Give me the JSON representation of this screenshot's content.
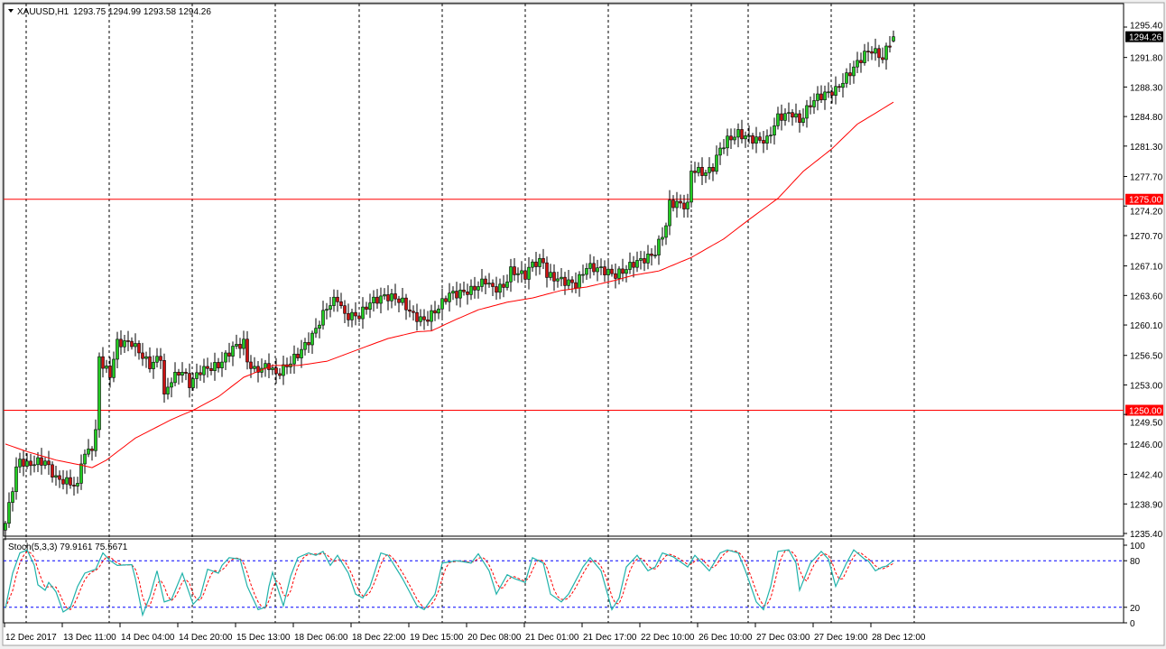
{
  "header": {
    "symbol_label": "XAUUSD,H1",
    "ohlc_text": "1293.75 1294.99 1293.58 1294.26",
    "menu_icon": "triangle-down-icon"
  },
  "colors": {
    "background": "#ffffff",
    "bull_candle": "#22cc22",
    "bear_candle": "#cc1111",
    "moving_average": "#ff0000",
    "level_line": "#ff0000",
    "stoch_main": "#20b2aa",
    "stoch_signal": "#ff0000",
    "stoch_levels": "#0000ff",
    "grid": "#000000"
  },
  "price_axis": {
    "ticks": [
      "1295.40",
      "1291.80",
      "1288.30",
      "1284.80",
      "1281.30",
      "1277.70",
      "1274.20",
      "1270.70",
      "1267.10",
      "1263.60",
      "1260.10",
      "1256.50",
      "1253.00",
      "1249.50",
      "1246.00",
      "1242.40",
      "1238.90",
      "1235.40"
    ],
    "current_price_label": "1294.26",
    "level_labels": [
      "1275.00",
      "1250.00"
    ]
  },
  "time_axis": {
    "labels": [
      "12 Dec 2017",
      "13 Dec 11:00",
      "14 Dec 04:00",
      "14 Dec 20:00",
      "15 Dec 13:00",
      "18 Dec 06:00",
      "18 Dec 22:00",
      "19 Dec 15:00",
      "20 Dec 08:00",
      "21 Dec 01:00",
      "21 Dec 17:00",
      "22 Dec 10:00",
      "26 Dec 10:00",
      "27 Dec 03:00",
      "27 Dec 19:00",
      "28 Dec 12:00"
    ]
  },
  "indicator": {
    "title": "Stoch(5,3,3) 79.9161 75.5671",
    "axis_labels": [
      "100",
      "80",
      "20",
      "0"
    ]
  },
  "chart_data": [
    {
      "type": "candlestick",
      "symbol": "XAUUSD",
      "timeframe": "H1",
      "ylim": [
        1235.4,
        1295.4
      ],
      "grid": "vertical dashed",
      "last_bar": {
        "open": 1293.75,
        "high": 1294.99,
        "low": 1293.58,
        "close": 1294.26
      },
      "horizontal_levels": [
        1275.0,
        1250.0
      ],
      "close_by_bar": [
        [
          0,
          1236.6
        ],
        [
          1,
          1238.7
        ],
        [
          3,
          1243.0
        ],
        [
          4,
          1244.1
        ],
        [
          6,
          1243.5
        ],
        [
          9,
          1243.9
        ],
        [
          11,
          1243.9
        ],
        [
          14,
          1241.9
        ],
        [
          18,
          1241.4
        ],
        [
          20,
          1240.9
        ],
        [
          21,
          1244.1
        ],
        [
          24,
          1245.7
        ],
        [
          25,
          1247.3
        ],
        [
          26,
          1256.4
        ],
        [
          27,
          1255.3
        ],
        [
          29,
          1254.2
        ],
        [
          31,
          1258.0
        ],
        [
          35,
          1258.0
        ],
        [
          38,
          1256.4
        ],
        [
          40,
          1255.3
        ],
        [
          43,
          1256.4
        ],
        [
          44,
          1251.6
        ],
        [
          46,
          1253.7
        ],
        [
          49,
          1254.7
        ],
        [
          51,
          1253.1
        ],
        [
          54,
          1254.7
        ],
        [
          59,
          1255.3
        ],
        [
          63,
          1257.4
        ],
        [
          66,
          1258.0
        ],
        [
          67,
          1255.8
        ],
        [
          69,
          1254.7
        ],
        [
          73,
          1255.3
        ],
        [
          75,
          1254.2
        ],
        [
          78,
          1255.3
        ],
        [
          81,
          1256.6
        ],
        [
          85,
          1258.8
        ],
        [
          89,
          1262.2
        ],
        [
          92,
          1263.3
        ],
        [
          94,
          1261.2
        ],
        [
          98,
          1261.2
        ],
        [
          101,
          1262.8
        ],
        [
          105,
          1263.5
        ],
        [
          108,
          1263.3
        ],
        [
          110,
          1262.8
        ],
        [
          113,
          1261.2
        ],
        [
          116,
          1260.6
        ],
        [
          119,
          1261.7
        ],
        [
          123,
          1263.8
        ],
        [
          125,
          1263.8
        ],
        [
          129,
          1264.2
        ],
        [
          133,
          1265.4
        ],
        [
          135,
          1264.4
        ],
        [
          138,
          1264.6
        ],
        [
          140,
          1266.5
        ],
        [
          144,
          1266.0
        ],
        [
          146,
          1267.4
        ],
        [
          149,
          1267.6
        ],
        [
          150,
          1266.0
        ],
        [
          154,
          1265.4
        ],
        [
          158,
          1264.9
        ],
        [
          161,
          1267.0
        ],
        [
          165,
          1266.7
        ],
        [
          169,
          1266.0
        ],
        [
          171,
          1266.5
        ],
        [
          174,
          1267.4
        ],
        [
          178,
          1268.1
        ],
        [
          180,
          1268.7
        ],
        [
          183,
          1271.9
        ],
        [
          184,
          1274.5
        ],
        [
          186,
          1274.5
        ],
        [
          189,
          1274.2
        ],
        [
          190,
          1278.5
        ],
        [
          194,
          1278.1
        ],
        [
          196,
          1278.8
        ],
        [
          198,
          1281.0
        ],
        [
          200,
          1282.0
        ],
        [
          203,
          1282.8
        ],
        [
          205,
          1282.4
        ],
        [
          208,
          1282.0
        ],
        [
          211,
          1282.0
        ],
        [
          214,
          1284.7
        ],
        [
          218,
          1285.2
        ],
        [
          220,
          1284.2
        ],
        [
          223,
          1286.3
        ],
        [
          225,
          1287.1
        ],
        [
          228,
          1287.6
        ],
        [
          230,
          1287.9
        ],
        [
          233,
          1289.5
        ],
        [
          235,
          1290.6
        ],
        [
          238,
          1292.2
        ],
        [
          240,
          1292.7
        ],
        [
          243,
          1291.7
        ],
        [
          244,
          1292.7
        ],
        [
          246,
          1294.26
        ]
      ],
      "moving_average_by_bar": [
        [
          0,
          1246.0
        ],
        [
          6,
          1245.1
        ],
        [
          14,
          1244.1
        ],
        [
          21,
          1243.5
        ],
        [
          24,
          1243.2
        ],
        [
          28,
          1244.1
        ],
        [
          36,
          1246.7
        ],
        [
          46,
          1248.9
        ],
        [
          52,
          1250.0
        ],
        [
          59,
          1251.6
        ],
        [
          66,
          1253.9
        ],
        [
          74,
          1255.3
        ],
        [
          81,
          1255.3
        ],
        [
          89,
          1255.8
        ],
        [
          99,
          1257.4
        ],
        [
          106,
          1258.5
        ],
        [
          114,
          1259.3
        ],
        [
          118,
          1259.4
        ],
        [
          124,
          1260.6
        ],
        [
          131,
          1261.9
        ],
        [
          139,
          1262.8
        ],
        [
          146,
          1263.3
        ],
        [
          154,
          1264.2
        ],
        [
          161,
          1264.6
        ],
        [
          169,
          1265.4
        ],
        [
          174,
          1266.0
        ],
        [
          181,
          1266.5
        ],
        [
          190,
          1268.1
        ],
        [
          199,
          1270.3
        ],
        [
          206,
          1272.6
        ],
        [
          214,
          1275.1
        ],
        [
          221,
          1278.3
        ],
        [
          229,
          1281.0
        ],
        [
          236,
          1283.9
        ],
        [
          246,
          1286.5
        ]
      ]
    },
    {
      "type": "line",
      "title": "Stoch(5,3,3) 79.9161 75.5671",
      "ylim": [
        0,
        100
      ],
      "levels": [
        20,
        80
      ],
      "series": [
        {
          "name": "Stoch(5,3,3)",
          "values_by_bar": [
            [
              0,
              19
            ],
            [
              2,
              64
            ],
            [
              4,
              90
            ],
            [
              6,
              94
            ],
            [
              8,
              74
            ],
            [
              9,
              49
            ],
            [
              11,
              42
            ],
            [
              12,
              52
            ],
            [
              14,
              40
            ],
            [
              16,
              14
            ],
            [
              18,
              20
            ],
            [
              20,
              47
            ],
            [
              22,
              64
            ],
            [
              25,
              69
            ],
            [
              27,
              90
            ],
            [
              29,
              80
            ],
            [
              31,
              74
            ],
            [
              35,
              75
            ],
            [
              36,
              57
            ],
            [
              38,
              10
            ],
            [
              40,
              34
            ],
            [
              42,
              67
            ],
            [
              44,
              27
            ],
            [
              46,
              30
            ],
            [
              49,
              64
            ],
            [
              52,
              24
            ],
            [
              54,
              34
            ],
            [
              56,
              69
            ],
            [
              59,
              64
            ],
            [
              60,
              74
            ],
            [
              62,
              84
            ],
            [
              65,
              82
            ],
            [
              67,
              47
            ],
            [
              70,
              17
            ],
            [
              72,
              20
            ],
            [
              73,
              47
            ],
            [
              74,
              65
            ],
            [
              77,
              22
            ],
            [
              79,
              60
            ],
            [
              81,
              84
            ],
            [
              84,
              90
            ],
            [
              86,
              87
            ],
            [
              88,
              92
            ],
            [
              90,
              74
            ],
            [
              92,
              87
            ],
            [
              95,
              64
            ],
            [
              97,
              37
            ],
            [
              99,
              32
            ],
            [
              101,
              47
            ],
            [
              104,
              90
            ],
            [
              106,
              87
            ],
            [
              110,
              57
            ],
            [
              114,
              22
            ],
            [
              116,
              17
            ],
            [
              119,
              37
            ],
            [
              121,
              77
            ],
            [
              125,
              80
            ],
            [
              129,
              77
            ],
            [
              131,
              89
            ],
            [
              134,
              67
            ],
            [
              136,
              37
            ],
            [
              139,
              62
            ],
            [
              141,
              57
            ],
            [
              144,
              52
            ],
            [
              146,
              84
            ],
            [
              149,
              77
            ],
            [
              151,
              37
            ],
            [
              154,
              27
            ],
            [
              156,
              37
            ],
            [
              160,
              72
            ],
            [
              162,
              84
            ],
            [
              165,
              67
            ],
            [
              168,
              17
            ],
            [
              170,
              32
            ],
            [
              172,
              72
            ],
            [
              175,
              87
            ],
            [
              178,
              67
            ],
            [
              180,
              72
            ],
            [
              182,
              90
            ],
            [
              185,
              85
            ],
            [
              189,
              72
            ],
            [
              191,
              87
            ],
            [
              195,
              67
            ],
            [
              198,
              90
            ],
            [
              200,
              94
            ],
            [
              203,
              90
            ],
            [
              205,
              67
            ],
            [
              208,
              27
            ],
            [
              210,
              17
            ],
            [
              212,
              47
            ],
            [
              214,
              92
            ],
            [
              217,
              94
            ],
            [
              219,
              77
            ],
            [
              220,
              42
            ],
            [
              223,
              77
            ],
            [
              226,
              92
            ],
            [
              228,
              82
            ],
            [
              230,
              47
            ],
            [
              233,
              77
            ],
            [
              235,
              94
            ],
            [
              238,
              82
            ],
            [
              239,
              80
            ],
            [
              241,
              67
            ],
            [
              243,
              72
            ],
            [
              244,
              73
            ],
            [
              246,
              79.9161
            ]
          ]
        }
      ]
    }
  ]
}
